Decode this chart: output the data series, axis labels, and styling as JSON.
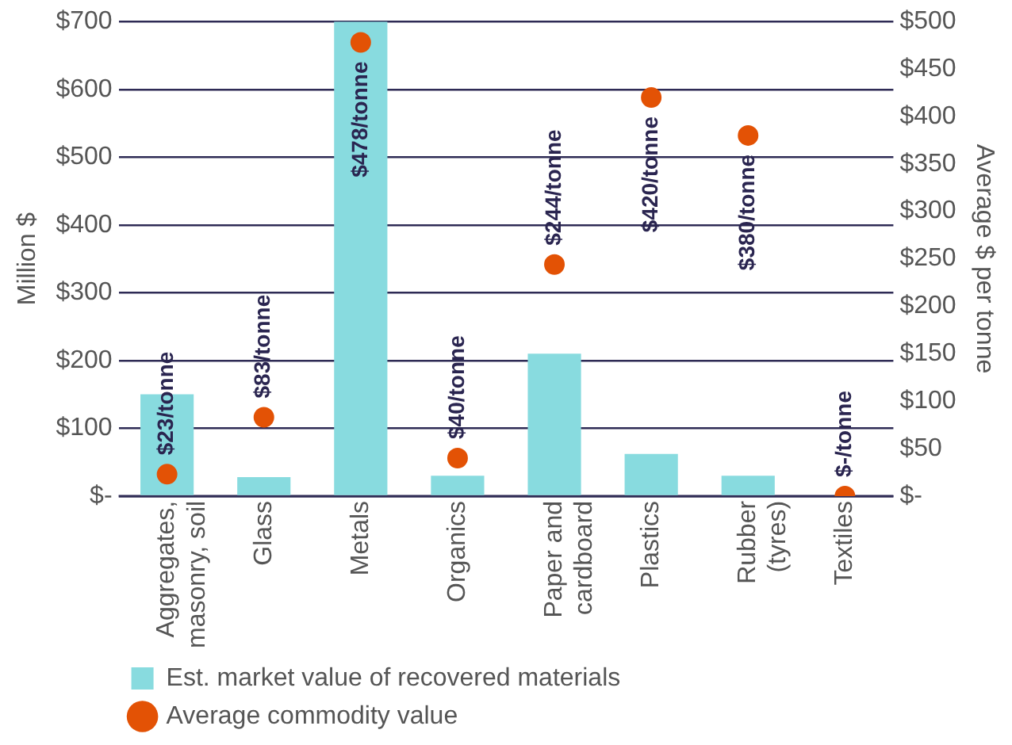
{
  "chart_data": {
    "type": "bar",
    "categories": [
      "Aggregates, masonry, soil",
      "Glass",
      "Metals",
      "Organics",
      "Paper and cardboard",
      "Plastics",
      "Rubber (tyres)",
      "Textiles"
    ],
    "ylabel": "Million $",
    "y2label": "Average $ per tonne",
    "series": [
      {
        "name": "Est. market value of recovered materials",
        "type": "bar",
        "color": "#88dbdf",
        "values": [
          150,
          28,
          700,
          30,
          210,
          62,
          30,
          0
        ]
      },
      {
        "name": "Average commodity value",
        "type": "scatter",
        "axis": "y2",
        "color": "#e35205",
        "marker": "circle",
        "values": [
          23,
          83,
          478,
          40,
          244,
          420,
          380,
          0
        ],
        "value_labels": [
          "$23/tonne",
          "$83/tonne",
          "$478/tonne",
          "$40/tonne",
          "$244/tonne",
          "$420/tonne",
          "$380/tonne",
          "$-/tonne"
        ]
      }
    ],
    "ylim": [
      0,
      700
    ],
    "yticks": [
      {
        "value": 0,
        "label": "$-"
      },
      {
        "value": 100,
        "label": "$100"
      },
      {
        "value": 200,
        "label": "$200"
      },
      {
        "value": 300,
        "label": "$300"
      },
      {
        "value": 400,
        "label": "$400"
      },
      {
        "value": 500,
        "label": "$500"
      },
      {
        "value": 600,
        "label": "$600"
      },
      {
        "value": 700,
        "label": "$700"
      }
    ],
    "y2lim": [
      0,
      500
    ],
    "y2ticks": [
      {
        "value": 0,
        "label": "$-"
      },
      {
        "value": 50,
        "label": "$50"
      },
      {
        "value": 100,
        "label": "$100"
      },
      {
        "value": 150,
        "label": "$150"
      },
      {
        "value": 200,
        "label": "$200"
      },
      {
        "value": 250,
        "label": "$250"
      },
      {
        "value": 300,
        "label": "$300"
      },
      {
        "value": 350,
        "label": "$350"
      },
      {
        "value": 400,
        "label": "$400"
      },
      {
        "value": 450,
        "label": "$450"
      },
      {
        "value": 500,
        "label": "$500"
      }
    ],
    "grid": "y",
    "legend": "bottom"
  }
}
